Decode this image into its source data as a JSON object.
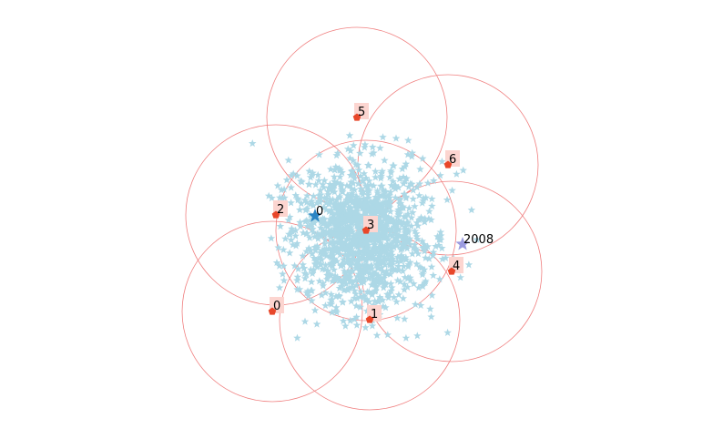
{
  "chart_data": {
    "type": "scatter",
    "title": "",
    "xlabel": "",
    "ylabel": "",
    "grid": false,
    "axes_visible": false,
    "point_cloud": {
      "marker": "star",
      "color": "#add8e6",
      "count": 2000
    },
    "highlight_points": [
      {
        "label": "0",
        "x": 346,
        "y": 237,
        "marker": "star",
        "color": "#2a84c4"
      },
      {
        "label": "2008",
        "x": 508,
        "y": 268,
        "marker": "star",
        "color": "#9b9be0"
      }
    ],
    "anchors": [
      {
        "label": "0",
        "x": 299,
        "y": 342
      },
      {
        "label": "1",
        "x": 406,
        "y": 351
      },
      {
        "label": "2",
        "x": 303,
        "y": 236
      },
      {
        "label": "3",
        "x": 402,
        "y": 253
      },
      {
        "label": "4",
        "x": 496,
        "y": 298
      },
      {
        "label": "5",
        "x": 392,
        "y": 129
      },
      {
        "label": "6",
        "x": 492,
        "y": 181
      }
    ],
    "anchor_style": {
      "marker": "pentagon",
      "color": "#e8472a",
      "label_box_color": "#fcd5d0"
    },
    "circle_radius": 99,
    "circle_color": "#f08080"
  }
}
